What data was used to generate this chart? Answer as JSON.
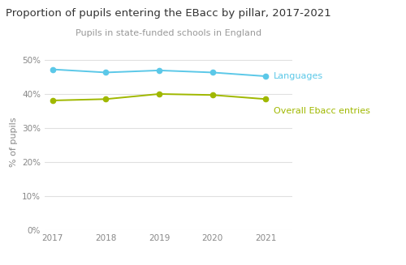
{
  "title": "Proportion of pupils entering the EBacc by pillar, 2017-2021",
  "subtitle": "Pupils in state-funded schools in England",
  "ylabel": "% of pupils",
  "years": [
    2017,
    2018,
    2019,
    2020,
    2021
  ],
  "languages": [
    0.472,
    0.463,
    0.469,
    0.463,
    0.452
  ],
  "overall_ebacc": [
    0.381,
    0.385,
    0.4,
    0.397,
    0.385
  ],
  "languages_color": "#5bc8e8",
  "overall_ebacc_color": "#a0b800",
  "languages_label": "Languages",
  "overall_ebacc_label": "Overall Ebacc entries",
  "ylim": [
    0,
    0.52
  ],
  "yticks": [
    0,
    0.1,
    0.2,
    0.3,
    0.4,
    0.5
  ],
  "background_color": "#ffffff",
  "grid_color": "#e0e0e0",
  "title_fontsize": 9.5,
  "subtitle_fontsize": 8,
  "ylabel_fontsize": 8,
  "tick_fontsize": 7.5,
  "inline_label_fontsize": 8,
  "linewidth": 1.4,
  "markersize": 4.5
}
